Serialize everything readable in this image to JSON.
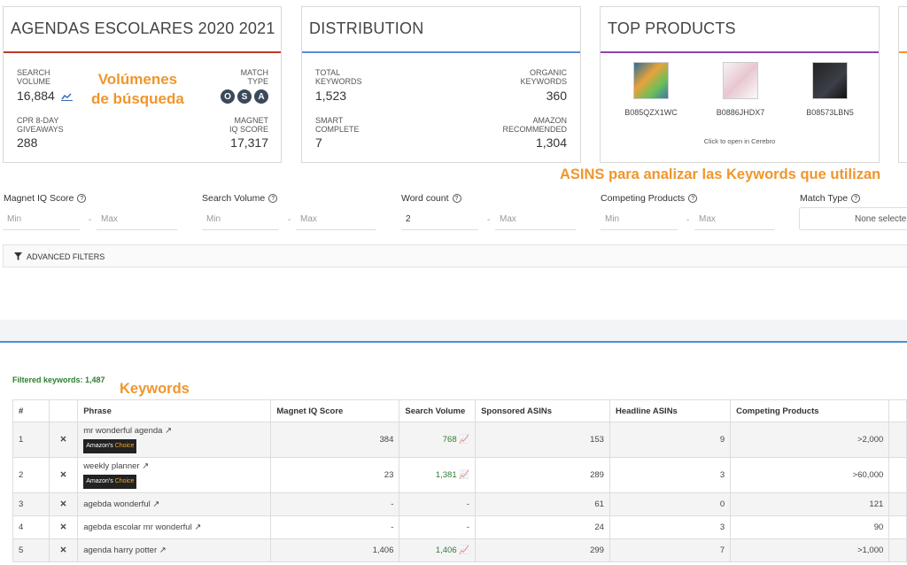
{
  "card1": {
    "title": "AGENDAS ESCOLARES 2020 2021",
    "accent": "#c0392b",
    "search_volume_label_1": "SEARCH",
    "search_volume_label_2": "VOLUME",
    "search_volume": "16,884",
    "match_type_label_1": "MATCH",
    "match_type_label_2": "TYPE",
    "match_icons": [
      "O",
      "S",
      "A"
    ],
    "cpr_label_1": "CPR 8-DAY",
    "cpr_label_2": "GIVEAWAYS",
    "cpr": "288",
    "iq_label_1": "MAGNET",
    "iq_label_2": "IQ SCORE",
    "iq": "17,317"
  },
  "card2": {
    "title": "DISTRIBUTION",
    "accent": "#5b8dd9",
    "total_label_1": "TOTAL",
    "total_label_2": "KEYWORDS",
    "total": "1,523",
    "organic_label_1": "ORGANIC",
    "organic_label_2": "KEYWORDS",
    "organic": "360",
    "smart_label_1": "SMART",
    "smart_label_2": "COMPLETE",
    "smart": "7",
    "amazon_label_1": "AMAZON",
    "amazon_label_2": "RECOMMENDED",
    "amazon": "1,304"
  },
  "card3": {
    "title": "TOP PRODUCTS",
    "accent": "#8e44ad",
    "products": [
      "B085QZX1WC",
      "B0886JHDX7",
      "B08573LBN5"
    ],
    "hint": "Click to open in Cerebro"
  },
  "annotations": {
    "volumes_1": "Volúmenes",
    "volumes_2": "de búsqueda",
    "asins": "ASINS para analizar las Keywords que utilizan",
    "keywords": "Keywords"
  },
  "filters": {
    "magnet_iq": "Magnet IQ Score",
    "search_volume": "Search Volume",
    "word_count": "Word count",
    "competing": "Competing Products",
    "match_type": "Match Type",
    "min_placeholder": "Min",
    "max_placeholder": "Max",
    "word_count_min": "2",
    "match_type_value": "None selecte",
    "advanced": "ADVANCED FILTERS"
  },
  "filtered_keywords": "Filtered keywords: 1,487",
  "table": {
    "headers": [
      "#",
      "",
      "Phrase",
      "Magnet IQ Score",
      "Search Volume",
      "Sponsored ASINs",
      "Headline ASINs",
      "Competing Products"
    ],
    "badge_a": "Amazon's",
    "badge_b": "Choice",
    "rows": [
      {
        "n": "1",
        "phrase": "mr wonderful agenda",
        "iq": "384",
        "sv": "768",
        "sp": "153",
        "hl": "9",
        "cp": ">2,000"
      },
      {
        "n": "2",
        "phrase": "weekly planner",
        "iq": "23",
        "sv": "1,381",
        "sp": "289",
        "hl": "3",
        "cp": ">60,000"
      },
      {
        "n": "3",
        "phrase": "agebda wonderful",
        "iq": "-",
        "sv": "-",
        "sp": "61",
        "hl": "0",
        "cp": "121"
      },
      {
        "n": "4",
        "phrase": "agebda escolar mr wonderful",
        "iq": "-",
        "sv": "-",
        "sp": "24",
        "hl": "3",
        "cp": "90"
      },
      {
        "n": "5",
        "phrase": "agenda harry potter",
        "iq": "1,406",
        "sv": "1,406",
        "sp": "299",
        "hl": "7",
        "cp": ">1,000"
      }
    ]
  }
}
